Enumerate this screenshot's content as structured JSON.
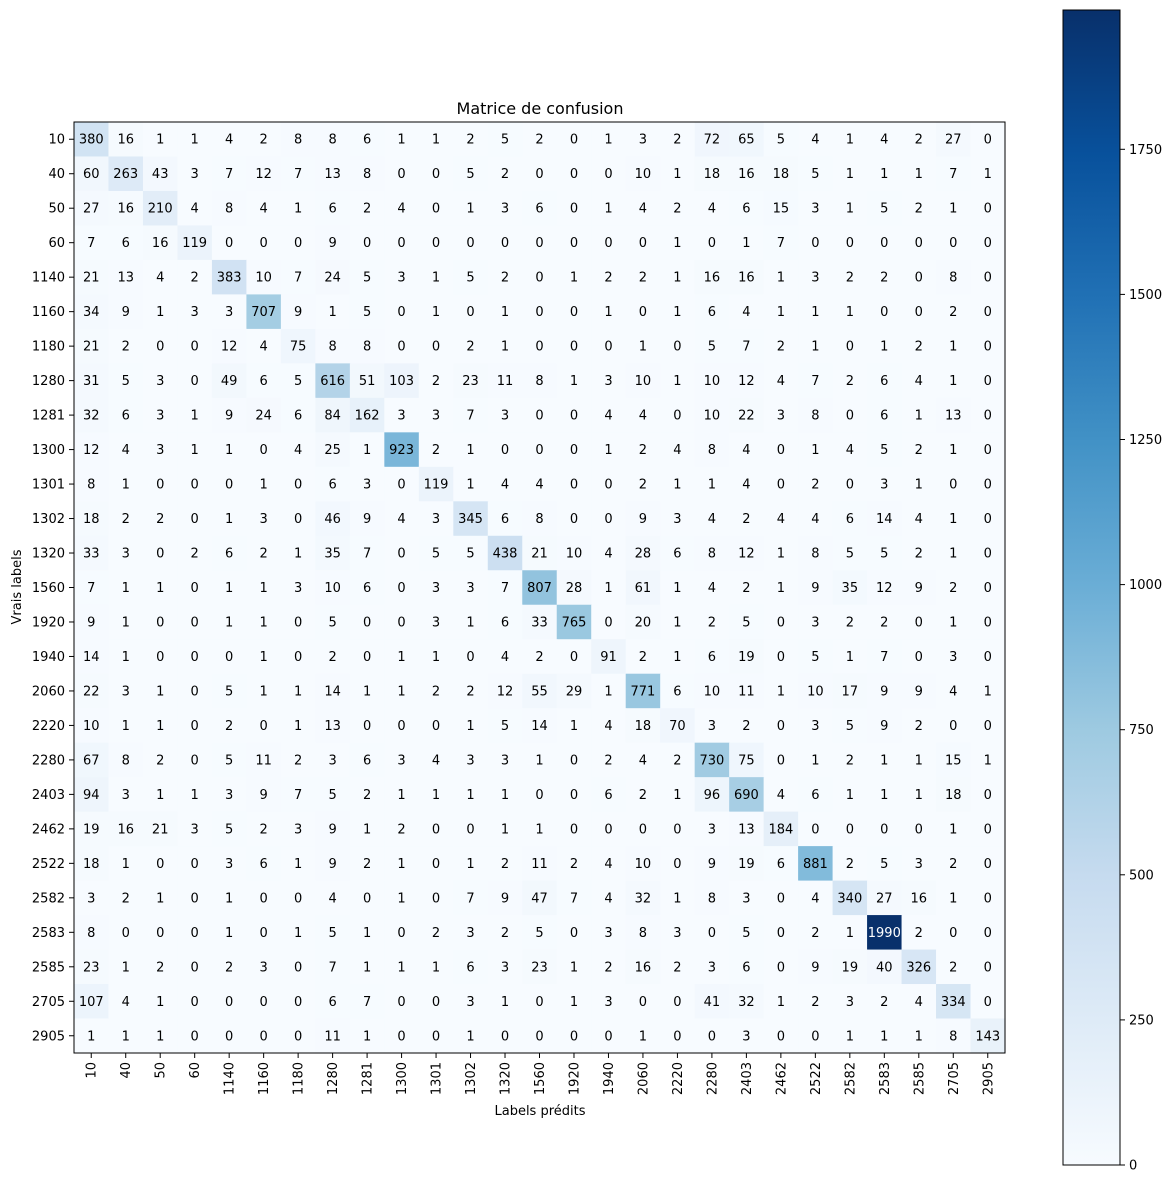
{
  "chart_data": {
    "type": "heatmap",
    "title": "Matrice de confusion",
    "xlabel": "Labels prédits",
    "ylabel": "Vrais labels",
    "colormap": "Blues",
    "colors": {
      "low": "#f7fbff",
      "high": "#08306b"
    },
    "value_range": [
      0,
      1990
    ],
    "colorbar_ticks": [
      0,
      250,
      500,
      750,
      1000,
      1250,
      1500,
      1750
    ],
    "labels": [
      "10",
      "40",
      "50",
      "60",
      "1140",
      "1160",
      "1180",
      "1280",
      "1281",
      "1300",
      "1301",
      "1302",
      "1320",
      "1560",
      "1920",
      "1940",
      "2060",
      "2220",
      "2280",
      "2403",
      "2462",
      "2522",
      "2582",
      "2583",
      "2585",
      "2705",
      "2905"
    ],
    "matrix": [
      [
        380,
        16,
        1,
        1,
        4,
        2,
        8,
        8,
        6,
        1,
        1,
        2,
        5,
        2,
        0,
        1,
        3,
        2,
        72,
        65,
        5,
        4,
        1,
        4,
        2,
        27,
        0
      ],
      [
        60,
        263,
        43,
        3,
        7,
        12,
        7,
        13,
        8,
        0,
        0,
        5,
        2,
        0,
        0,
        0,
        10,
        1,
        18,
        16,
        18,
        5,
        1,
        1,
        1,
        7,
        1
      ],
      [
        27,
        16,
        210,
        4,
        8,
        4,
        1,
        6,
        2,
        4,
        0,
        1,
        3,
        6,
        0,
        1,
        4,
        2,
        4,
        6,
        15,
        3,
        1,
        5,
        2,
        1,
        0
      ],
      [
        7,
        6,
        16,
        119,
        0,
        0,
        0,
        9,
        0,
        0,
        0,
        0,
        0,
        0,
        0,
        0,
        0,
        1,
        0,
        1,
        7,
        0,
        0,
        0,
        0,
        0,
        0
      ],
      [
        21,
        13,
        4,
        2,
        383,
        10,
        7,
        24,
        5,
        3,
        1,
        5,
        2,
        0,
        1,
        2,
        2,
        1,
        16,
        16,
        1,
        3,
        2,
        2,
        0,
        8,
        0
      ],
      [
        34,
        9,
        1,
        3,
        3,
        707,
        9,
        1,
        5,
        0,
        1,
        0,
        1,
        0,
        0,
        1,
        0,
        1,
        6,
        4,
        1,
        1,
        1,
        0,
        0,
        2,
        0
      ],
      [
        21,
        2,
        0,
        0,
        12,
        4,
        75,
        8,
        8,
        0,
        0,
        2,
        1,
        0,
        0,
        0,
        1,
        0,
        5,
        7,
        2,
        1,
        0,
        1,
        2,
        1,
        0
      ],
      [
        31,
        5,
        3,
        0,
        49,
        6,
        5,
        616,
        51,
        103,
        2,
        23,
        11,
        8,
        1,
        3,
        10,
        1,
        10,
        12,
        4,
        7,
        2,
        6,
        4,
        1,
        0
      ],
      [
        32,
        6,
        3,
        1,
        9,
        24,
        6,
        84,
        162,
        3,
        3,
        7,
        3,
        0,
        0,
        4,
        4,
        0,
        10,
        22,
        3,
        8,
        0,
        6,
        1,
        13,
        0
      ],
      [
        12,
        4,
        3,
        1,
        1,
        0,
        4,
        25,
        1,
        923,
        2,
        1,
        0,
        0,
        0,
        1,
        2,
        4,
        8,
        4,
        0,
        1,
        4,
        5,
        2,
        1,
        0
      ],
      [
        8,
        1,
        0,
        0,
        0,
        1,
        0,
        6,
        3,
        0,
        119,
        1,
        4,
        4,
        0,
        0,
        2,
        1,
        1,
        4,
        0,
        2,
        0,
        3,
        1,
        0,
        0
      ],
      [
        18,
        2,
        2,
        0,
        1,
        3,
        0,
        46,
        9,
        4,
        3,
        345,
        6,
        8,
        0,
        0,
        9,
        3,
        4,
        2,
        4,
        4,
        6,
        14,
        4,
        1,
        0
      ],
      [
        33,
        3,
        0,
        2,
        6,
        2,
        1,
        35,
        7,
        0,
        5,
        5,
        438,
        21,
        10,
        4,
        28,
        6,
        8,
        12,
        1,
        8,
        5,
        5,
        2,
        1,
        0
      ],
      [
        7,
        1,
        1,
        0,
        1,
        1,
        3,
        10,
        6,
        0,
        3,
        3,
        7,
        807,
        28,
        1,
        61,
        1,
        4,
        2,
        1,
        9,
        35,
        12,
        9,
        2,
        0
      ],
      [
        9,
        1,
        0,
        0,
        1,
        1,
        0,
        5,
        0,
        0,
        3,
        1,
        6,
        33,
        765,
        0,
        20,
        1,
        2,
        5,
        0,
        3,
        2,
        2,
        0,
        1,
        0
      ],
      [
        14,
        1,
        0,
        0,
        0,
        1,
        0,
        2,
        0,
        1,
        1,
        0,
        4,
        2,
        0,
        91,
        2,
        1,
        6,
        19,
        0,
        5,
        1,
        7,
        0,
        3,
        0
      ],
      [
        22,
        3,
        1,
        0,
        5,
        1,
        1,
        14,
        1,
        1,
        2,
        2,
        12,
        55,
        29,
        1,
        771,
        6,
        10,
        11,
        1,
        10,
        17,
        9,
        9,
        4,
        1
      ],
      [
        10,
        1,
        1,
        0,
        2,
        0,
        1,
        13,
        0,
        0,
        0,
        1,
        5,
        14,
        1,
        4,
        18,
        70,
        3,
        2,
        0,
        3,
        5,
        9,
        2,
        0,
        0
      ],
      [
        67,
        8,
        2,
        0,
        5,
        11,
        2,
        3,
        6,
        3,
        4,
        3,
        3,
        1,
        0,
        2,
        4,
        2,
        730,
        75,
        0,
        1,
        2,
        1,
        1,
        15,
        1
      ],
      [
        94,
        3,
        1,
        1,
        3,
        9,
        7,
        5,
        2,
        1,
        1,
        1,
        1,
        0,
        0,
        6,
        2,
        1,
        96,
        690,
        4,
        6,
        1,
        1,
        1,
        18,
        0
      ],
      [
        19,
        16,
        21,
        3,
        5,
        2,
        3,
        9,
        1,
        2,
        0,
        0,
        1,
        1,
        0,
        0,
        0,
        0,
        3,
        13,
        184,
        0,
        0,
        0,
        0,
        1,
        0
      ],
      [
        18,
        1,
        0,
        0,
        3,
        6,
        1,
        9,
        2,
        1,
        0,
        1,
        2,
        11,
        2,
        4,
        10,
        0,
        9,
        19,
        6,
        881,
        2,
        5,
        3,
        2,
        0
      ],
      [
        3,
        2,
        1,
        0,
        1,
        0,
        0,
        4,
        0,
        1,
        0,
        7,
        9,
        47,
        7,
        4,
        32,
        1,
        8,
        3,
        0,
        4,
        340,
        27,
        16,
        1,
        0
      ],
      [
        8,
        0,
        0,
        0,
        1,
        0,
        1,
        5,
        1,
        0,
        2,
        3,
        2,
        5,
        0,
        3,
        8,
        3,
        0,
        5,
        0,
        2,
        1,
        1990,
        2,
        0,
        0
      ],
      [
        23,
        1,
        2,
        0,
        2,
        3,
        0,
        7,
        1,
        1,
        1,
        6,
        3,
        23,
        1,
        2,
        16,
        2,
        3,
        6,
        0,
        9,
        19,
        40,
        326,
        2,
        0
      ],
      [
        107,
        4,
        1,
        0,
        0,
        0,
        0,
        6,
        7,
        0,
        0,
        3,
        1,
        0,
        1,
        3,
        0,
        0,
        41,
        32,
        1,
        2,
        3,
        2,
        4,
        334,
        0
      ],
      [
        1,
        1,
        1,
        0,
        0,
        0,
        0,
        11,
        1,
        0,
        0,
        1,
        0,
        0,
        0,
        0,
        1,
        0,
        0,
        3,
        0,
        0,
        1,
        1,
        1,
        8,
        143
      ]
    ]
  }
}
